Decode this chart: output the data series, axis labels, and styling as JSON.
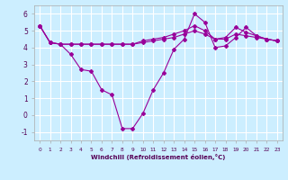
{
  "background_color": "#cceeff",
  "grid_color": "#ffffff",
  "line_color": "#990099",
  "xlabel": "Windchill (Refroidissement éolien,°C)",
  "ylim": [
    -1.5,
    6.5
  ],
  "xlim": [
    -0.5,
    23.5
  ],
  "yticks": [
    -1,
    0,
    1,
    2,
    3,
    4,
    5,
    6
  ],
  "x_ticks": [
    0,
    1,
    2,
    3,
    4,
    5,
    6,
    7,
    8,
    9,
    10,
    11,
    12,
    13,
    14,
    15,
    16,
    17,
    18,
    19,
    20,
    21,
    22,
    23
  ],
  "x_tick_labels": [
    "0",
    "1",
    "2",
    "3",
    "4",
    "5",
    "6",
    "7",
    "8",
    "9",
    "10",
    "11",
    "12",
    "13",
    "14",
    "15",
    "16",
    "17",
    "18",
    "19",
    "20",
    "21",
    "22",
    "23"
  ],
  "series": [
    {
      "x": [
        0,
        1,
        2,
        3,
        4,
        5,
        6,
        7,
        8,
        9,
        10,
        11,
        12,
        13,
        14,
        15,
        16,
        17,
        18,
        19,
        20,
        21,
        22,
        23
      ],
      "y": [
        5.3,
        4.3,
        4.2,
        4.2,
        4.2,
        4.2,
        4.2,
        4.2,
        4.2,
        4.2,
        4.4,
        4.5,
        4.6,
        4.8,
        5.0,
        5.3,
        5.0,
        4.5,
        4.6,
        5.2,
        4.9,
        4.7,
        4.5,
        4.4
      ]
    },
    {
      "x": [
        0,
        1,
        2,
        3,
        4,
        5,
        6,
        7,
        8,
        9,
        10,
        11,
        12,
        13,
        14,
        15,
        16,
        17,
        18,
        19,
        20,
        21,
        22,
        23
      ],
      "y": [
        5.3,
        4.3,
        4.2,
        4.2,
        4.2,
        4.2,
        4.2,
        4.2,
        4.2,
        4.2,
        4.3,
        4.4,
        4.5,
        4.6,
        4.8,
        5.0,
        4.8,
        4.5,
        4.5,
        4.8,
        4.7,
        4.6,
        4.5,
        4.4
      ]
    },
    {
      "x": [
        0,
        1,
        2,
        3,
        4,
        5,
        6,
        7,
        8,
        9,
        10,
        11,
        12,
        13,
        14,
        15,
        16,
        17,
        18,
        19,
        20,
        21,
        22,
        23
      ],
      "y": [
        5.3,
        4.3,
        4.2,
        3.6,
        2.7,
        2.6,
        1.5,
        1.2,
        -0.8,
        -0.8,
        0.1,
        1.5,
        2.5,
        3.9,
        4.5,
        6.0,
        5.5,
        4.0,
        4.1,
        4.6,
        5.2,
        4.7,
        4.5,
        4.4
      ]
    }
  ]
}
